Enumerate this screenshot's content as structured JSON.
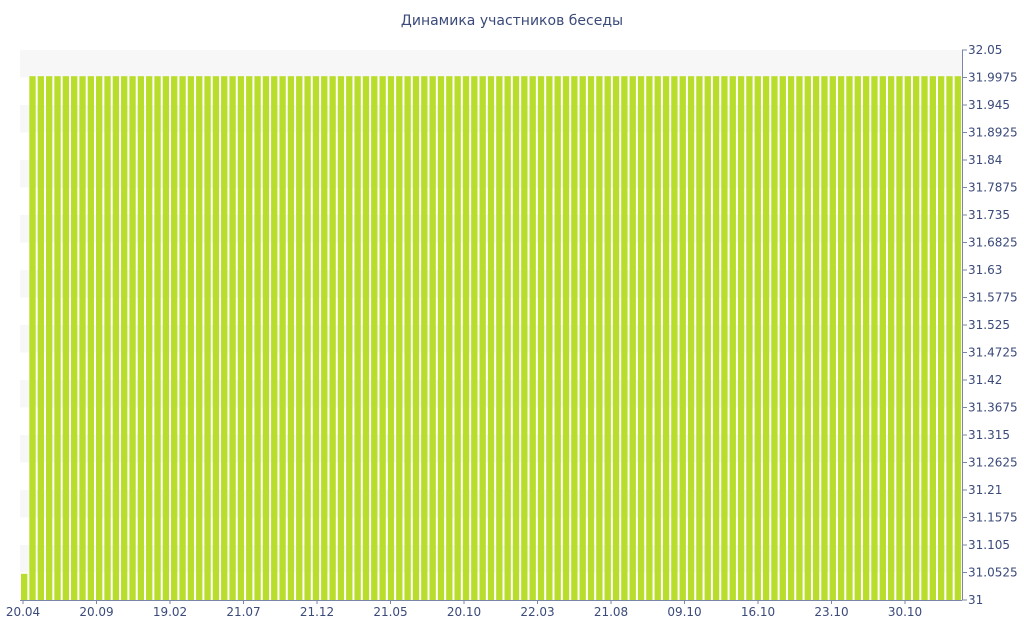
{
  "chart_data": {
    "type": "bar",
    "title": "Динамика участников беседы",
    "xlabel": "",
    "ylabel": "",
    "ylim": [
      31,
      32.05
    ],
    "y_ticks": [
      "32.05",
      "31.9975",
      "31.945",
      "31.8925",
      "31.84",
      "31.7875",
      "31.735",
      "31.6825",
      "31.63",
      "31.5775",
      "31.525",
      "31.4725",
      "31.42",
      "31.3675",
      "31.315",
      "31.2625",
      "31.21",
      "31.1575",
      "31.105",
      "31.0525",
      "31"
    ],
    "x_tick_labels": [
      "20.04",
      "20.09",
      "19.02",
      "21.07",
      "21.12",
      "21.05",
      "20.10",
      "22.03",
      "21.08",
      "09.10",
      "16.10",
      "23.10",
      "30.10"
    ],
    "bar_color": "#b8dd2a",
    "grid": "alternating horizontal bands",
    "values": [
      31.05,
      32,
      32,
      32,
      32,
      32,
      32,
      32,
      32,
      32,
      32,
      32,
      32,
      32,
      32,
      32,
      32,
      32,
      32,
      32,
      32,
      32,
      32,
      32,
      32,
      32,
      32,
      32,
      32,
      32,
      32,
      32,
      32,
      32,
      32,
      32,
      32,
      32,
      32,
      32,
      32,
      32,
      32,
      32,
      32,
      32,
      32,
      32,
      32,
      32,
      32,
      32,
      32,
      32,
      32,
      32,
      32,
      32,
      32,
      32,
      32,
      32,
      32,
      32,
      32,
      32,
      32,
      32,
      32,
      32,
      32,
      32,
      32,
      32,
      32,
      32,
      32,
      32,
      32,
      32,
      32,
      32,
      32,
      32,
      32,
      32,
      32,
      32,
      32,
      32,
      32,
      32,
      32,
      32,
      32,
      32,
      32,
      32,
      32,
      32,
      32,
      32,
      32,
      32,
      32,
      32,
      32,
      32,
      32,
      32,
      32,
      32,
      32
    ]
  }
}
